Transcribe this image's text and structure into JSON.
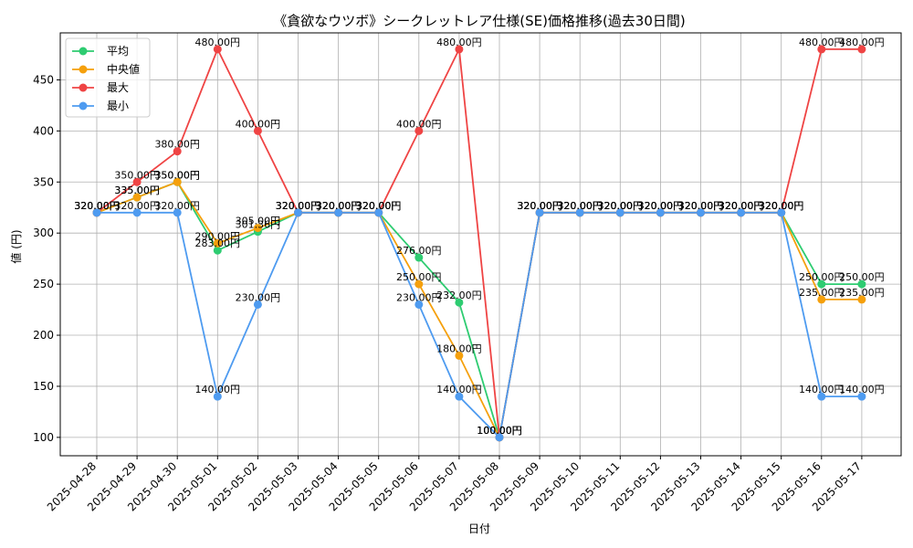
{
  "chart_data": {
    "type": "line",
    "title": "《貪欲なウツボ》シークレットレア仕様(SE)価格推移(過去30日間)",
    "xlabel": "日付",
    "ylabel": "値 (円)",
    "ylim": [
      82,
      496
    ],
    "yticks": [
      100,
      150,
      200,
      250,
      300,
      350,
      400,
      450
    ],
    "grid": true,
    "legend_position": "top-left",
    "value_suffix": "円",
    "categories": [
      "2025-04-28",
      "2025-04-29",
      "2025-04-30",
      "2025-05-01",
      "2025-05-02",
      "2025-05-03",
      "2025-05-04",
      "2025-05-05",
      "2025-05-06",
      "2025-05-07",
      "2025-05-08",
      "2025-05-09",
      "2025-05-10",
      "2025-05-11",
      "2025-05-12",
      "2025-05-13",
      "2025-05-14",
      "2025-05-15",
      "2025-05-16",
      "2025-05-17"
    ],
    "series": [
      {
        "name": "平均",
        "color": "#2ecc71",
        "values": [
          320,
          335,
          350,
          283,
          301.36,
          320,
          320,
          320,
          276,
          232,
          100,
          320,
          320,
          320,
          320,
          320,
          320,
          320,
          250,
          250
        ]
      },
      {
        "name": "中央値",
        "color": "#f5a00c",
        "values": [
          320,
          335,
          350,
          290,
          305,
          320,
          320,
          320,
          250,
          180,
          100,
          320,
          320,
          320,
          320,
          320,
          320,
          320,
          235,
          235
        ]
      },
      {
        "name": "最大",
        "color": "#ef4444",
        "values": [
          320,
          350,
          380,
          480,
          400,
          320,
          320,
          320,
          400,
          480,
          100,
          320,
          320,
          320,
          320,
          320,
          320,
          320,
          480,
          480
        ]
      },
      {
        "name": "最小",
        "color": "#4e9bf0",
        "values": [
          320,
          320,
          320,
          140,
          230,
          320,
          320,
          320,
          230,
          140,
          100,
          320,
          320,
          320,
          320,
          320,
          320,
          320,
          140,
          140
        ]
      }
    ]
  }
}
